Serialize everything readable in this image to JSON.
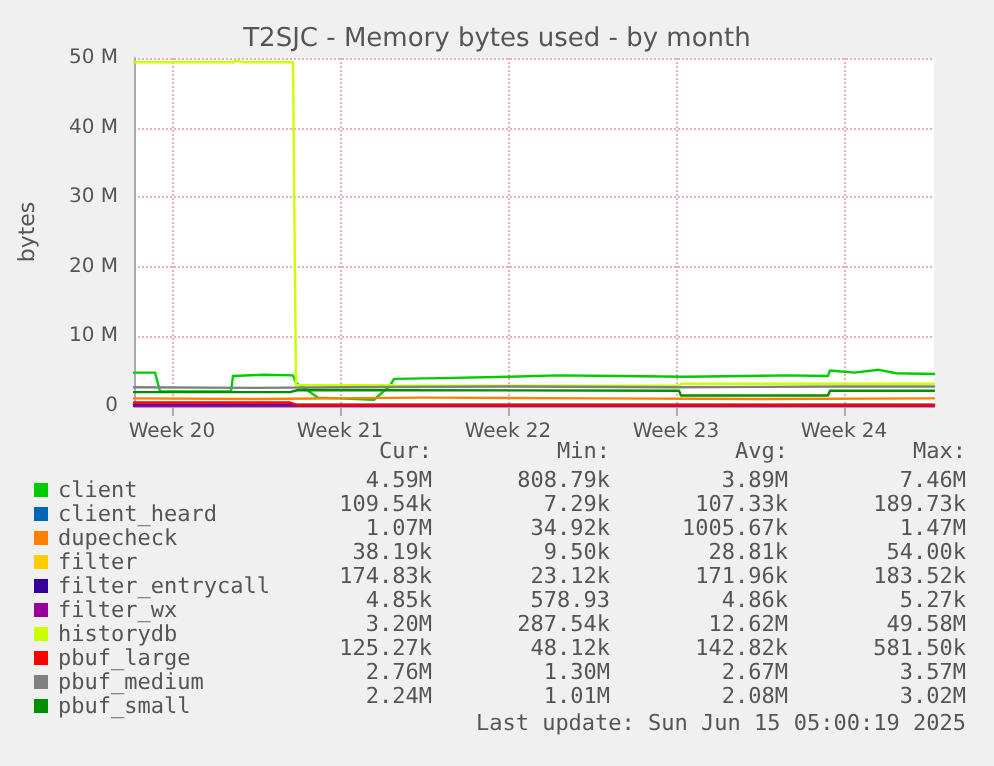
{
  "chart_data": {
    "type": "line",
    "title": "T2SJC - Memory bytes used - by month",
    "ylabel": "bytes",
    "xlim": [
      "2025-05-12T21:00",
      "2025-06-15T05:00"
    ],
    "xticks": [
      {
        "value": "2025-05-14T11:00",
        "label": "Week 20"
      },
      {
        "value": "2025-05-21T11:00",
        "label": "Week 21"
      },
      {
        "value": "2025-05-28T11:00",
        "label": "Week 22"
      },
      {
        "value": "2025-06-04T11:00",
        "label": "Week 23"
      },
      {
        "value": "2025-06-11T11:00",
        "label": "Week 24"
      }
    ],
    "ylim": [
      0,
      50
    ],
    "yticks": [
      0,
      {
        "value": 10,
        "label": "10 M"
      },
      {
        "value": 20,
        "label": "20 M"
      },
      {
        "value": 30,
        "label": "30 M"
      },
      {
        "value": 40,
        "label": "40 M"
      },
      {
        "value": 50,
        "label": "50 M"
      }
    ],
    "grid": true,
    "legend": "bottom left",
    "line_style": "solid",
    "series": [
      {
        "name": "client",
        "color": "#00cc00",
        "x": [
          "2025-05-12T21:00",
          "2025-05-13T18:00",
          "2025-05-13T23:00",
          "2025-05-16T22:00",
          "2025-05-17T00:00",
          "2025-05-18T07:00",
          "2025-05-19T12:00",
          "2025-05-19T15:00",
          "2025-05-20T01:00",
          "2025-05-20T13:00",
          "2025-05-21T11:00",
          "2025-05-22T21:00",
          "2025-05-23T13:00",
          "2025-05-23T17:00",
          "2025-05-25T16:00",
          "2025-05-28T11:00",
          "2025-05-30T13:00",
          "2025-06-02T01:00",
          "2025-06-04T21:00",
          "2025-06-09T01:00",
          "2025-06-10T19:00",
          "2025-06-10T21:00",
          "2025-06-11T21:00",
          "2025-06-12T22:00",
          "2025-06-13T15:00",
          "2025-06-15T05:00"
        ],
        "values": [
          4.8,
          4.8,
          2.1,
          2.1,
          4.3,
          4.5,
          4.4,
          3.3,
          2.4,
          1.2,
          1.1,
          0.9,
          2.9,
          3.9,
          4.0,
          4.2,
          4.4,
          4.3,
          4.2,
          4.4,
          4.3,
          5.1,
          4.8,
          5.2,
          4.7,
          4.6
        ]
      },
      {
        "name": "client_heard",
        "color": "#0066b3"
      },
      {
        "name": "dupecheck",
        "color": "#ff8000",
        "x": [
          "2025-05-12T21:00",
          "2025-05-17T23:00",
          "2025-05-24T23:00",
          "2025-05-31T23:00",
          "2025-06-07T23:00",
          "2025-06-15T05:00"
        ],
        "values": [
          1.1,
          1.0,
          1.2,
          1.1,
          1.0,
          1.1
        ]
      },
      {
        "name": "filter",
        "color": "#ffcc00"
      },
      {
        "name": "filter_entrycall",
        "color": "#330099",
        "x": [
          "2025-05-12T21:00",
          "2025-06-15T05:00"
        ],
        "values": [
          0.2,
          0.2
        ]
      },
      {
        "name": "filter_wx",
        "color": "#990099",
        "x": [
          "2025-05-12T21:00",
          "2025-06-15T05:00"
        ],
        "values": [
          0,
          0
        ]
      },
      {
        "name": "historydb",
        "color": "#ccff00",
        "x": [
          "2025-05-12T21:00",
          "2025-05-17T01:00",
          "2025-05-17T03:00",
          "2025-05-17T10:00",
          "2025-05-19T12:00",
          "2025-05-19T15:00",
          "2025-05-23T17:00",
          "2025-05-23T19:00",
          "2025-06-04T14:00",
          "2025-06-04T16:00",
          "2025-06-15T05:00"
        ],
        "values": [
          49.4,
          49.4,
          49.6,
          49.4,
          49.4,
          3.0,
          3.0,
          2.9,
          2.9,
          3.2,
          3.2
        ]
      },
      {
        "name": "pbuf_large",
        "color": "#ff0000",
        "x": [
          "2025-05-12T21:00",
          "2025-05-19T09:00",
          "2025-05-19T17:00",
          "2025-06-15T05:00"
        ],
        "values": [
          0.5,
          0.5,
          0.1,
          0.1
        ]
      },
      {
        "name": "pbuf_medium",
        "color": "#808080",
        "x": [
          "2025-05-12T21:00",
          "2025-05-17T23:00",
          "2025-05-21T11:00",
          "2025-05-28T11:00",
          "2025-06-04T11:00",
          "2025-06-11T11:00",
          "2025-06-15T05:00"
        ],
        "values": [
          2.7,
          2.6,
          2.7,
          2.8,
          2.7,
          2.8,
          2.8
        ]
      },
      {
        "name": "pbuf_small",
        "color": "#008f00",
        "x": [
          "2025-05-12T21:00",
          "2025-05-19T09:00",
          "2025-05-19T17:00",
          "2025-06-04T14:00",
          "2025-06-04T16:00",
          "2025-06-10T19:00",
          "2025-06-10T21:00",
          "2025-06-15T05:00"
        ],
        "values": [
          2.0,
          2.0,
          2.3,
          2.2,
          1.5,
          1.5,
          2.2,
          2.2
        ]
      }
    ],
    "annotations": [
      "Cur:",
      "Min:",
      "Avg:",
      "Max:",
      "4.59M",
      "808.79k",
      "3.89M",
      "7.46M",
      "109.54k",
      "7.29k",
      "107.33k",
      "189.73k",
      "1.07M",
      "34.92k",
      "1005.67k",
      "1.47M",
      "38.19k",
      "9.50k",
      "28.81k",
      "54.00k",
      "174.83k",
      "23.12k",
      "171.96k",
      "183.52k",
      "4.85k",
      "578.93",
      "4.86k",
      "5.27k",
      "3.20M",
      "287.54k",
      "12.62M",
      "49.58M",
      "125.27k",
      "48.12k",
      "142.82k",
      "581.50k",
      "2.76M",
      "1.30M",
      "2.67M",
      "3.57M",
      "2.24M",
      "1.01M",
      "2.08M",
      "3.02M",
      "Last update: Sun Jun 15 05:00:19 2025"
    ]
  }
}
